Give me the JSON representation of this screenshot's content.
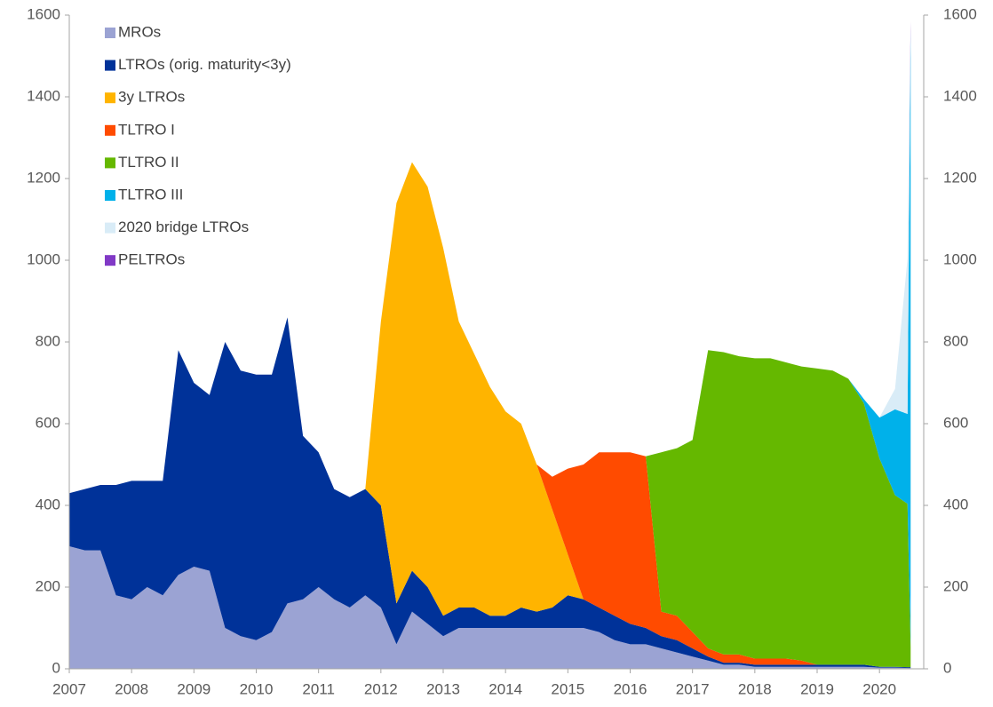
{
  "chart_data": {
    "type": "stacked-area",
    "x": [
      2007,
      2007.25,
      2007.5,
      2007.75,
      2008,
      2008.25,
      2008.5,
      2008.75,
      2009,
      2009.25,
      2009.5,
      2009.75,
      2010,
      2010.25,
      2010.5,
      2010.75,
      2011,
      2011.25,
      2011.5,
      2011.75,
      2012,
      2012.25,
      2012.5,
      2012.75,
      2013,
      2013.25,
      2013.5,
      2013.75,
      2014,
      2014.25,
      2014.5,
      2014.75,
      2015,
      2015.25,
      2015.5,
      2015.75,
      2016,
      2016.25,
      2016.5,
      2016.75,
      2017,
      2017.25,
      2017.5,
      2017.75,
      2018,
      2018.25,
      2018.5,
      2018.75,
      2019,
      2019.25,
      2019.5,
      2019.75,
      2020,
      2020.25,
      2020.45,
      2020.5
    ],
    "series": [
      {
        "name": "MROs",
        "color": "#9ba3d3",
        "values": [
          300,
          290,
          290,
          180,
          170,
          200,
          180,
          230,
          250,
          240,
          100,
          80,
          70,
          90,
          160,
          170,
          200,
          170,
          150,
          180,
          150,
          60,
          140,
          110,
          80,
          100,
          100,
          100,
          100,
          100,
          100,
          100,
          100,
          100,
          90,
          70,
          60,
          60,
          50,
          40,
          30,
          20,
          10,
          10,
          5,
          5,
          5,
          5,
          5,
          5,
          5,
          5,
          3,
          3,
          2,
          2
        ]
      },
      {
        "name": "LTROs (orig. maturity<3y)",
        "color": "#003299",
        "values": [
          130,
          150,
          160,
          270,
          290,
          260,
          280,
          550,
          450,
          430,
          700,
          650,
          650,
          630,
          700,
          400,
          330,
          270,
          270,
          260,
          250,
          100,
          100,
          90,
          50,
          50,
          50,
          30,
          30,
          50,
          40,
          50,
          80,
          70,
          60,
          60,
          50,
          40,
          30,
          30,
          20,
          10,
          5,
          5,
          5,
          5,
          5,
          5,
          5,
          5,
          5,
          5,
          2,
          2,
          2,
          2
        ]
      },
      {
        "name": "3y LTROs",
        "color": "#ffb400",
        "values": [
          0,
          0,
          0,
          0,
          0,
          0,
          0,
          0,
          0,
          0,
          0,
          0,
          0,
          0,
          0,
          0,
          0,
          0,
          0,
          0,
          450,
          980,
          1000,
          980,
          900,
          700,
          620,
          560,
          500,
          450,
          360,
          240,
          100,
          0,
          0,
          0,
          0,
          0,
          0,
          0,
          0,
          0,
          0,
          0,
          0,
          0,
          0,
          0,
          0,
          0,
          0,
          0,
          0,
          0,
          0,
          0
        ]
      },
      {
        "name": "TLTRO I",
        "color": "#ff4b00",
        "values": [
          0,
          0,
          0,
          0,
          0,
          0,
          0,
          0,
          0,
          0,
          0,
          0,
          0,
          0,
          0,
          0,
          0,
          0,
          0,
          0,
          0,
          0,
          0,
          0,
          0,
          0,
          0,
          0,
          0,
          0,
          0,
          80,
          210,
          330,
          380,
          400,
          420,
          420,
          60,
          60,
          40,
          20,
          20,
          20,
          15,
          15,
          15,
          10,
          0,
          0,
          0,
          0,
          0,
          0,
          0,
          0
        ]
      },
      {
        "name": "TLTRO II",
        "color": "#65b800",
        "values": [
          0,
          0,
          0,
          0,
          0,
          0,
          0,
          0,
          0,
          0,
          0,
          0,
          0,
          0,
          0,
          0,
          0,
          0,
          0,
          0,
          0,
          0,
          0,
          0,
          0,
          0,
          0,
          0,
          0,
          0,
          0,
          0,
          0,
          0,
          0,
          0,
          0,
          0,
          390,
          410,
          470,
          730,
          740,
          730,
          735,
          735,
          725,
          720,
          725,
          720,
          700,
          640,
          510,
          420,
          400,
          50
        ]
      },
      {
        "name": "TLTRO III",
        "color": "#00b1ea",
        "values": [
          0,
          0,
          0,
          0,
          0,
          0,
          0,
          0,
          0,
          0,
          0,
          0,
          0,
          0,
          0,
          0,
          0,
          0,
          0,
          0,
          0,
          0,
          0,
          0,
          0,
          0,
          0,
          0,
          0,
          0,
          0,
          0,
          0,
          0,
          0,
          0,
          0,
          0,
          0,
          0,
          0,
          0,
          0,
          0,
          0,
          0,
          0,
          0,
          0,
          0,
          0,
          10,
          100,
          210,
          220,
          1510
        ]
      },
      {
        "name": "2020 bridge LTROs",
        "color": "#d9ecf7",
        "values": [
          0,
          0,
          0,
          0,
          0,
          0,
          0,
          0,
          0,
          0,
          0,
          0,
          0,
          0,
          0,
          0,
          0,
          0,
          0,
          0,
          0,
          0,
          0,
          0,
          0,
          0,
          0,
          0,
          0,
          0,
          0,
          0,
          0,
          0,
          0,
          0,
          0,
          0,
          0,
          0,
          0,
          0,
          0,
          0,
          0,
          0,
          0,
          0,
          0,
          0,
          0,
          0,
          0,
          50,
          380,
          0
        ]
      },
      {
        "name": "PELTROs",
        "color": "#8139c6",
        "values": [
          0,
          0,
          0,
          0,
          0,
          0,
          0,
          0,
          0,
          0,
          0,
          0,
          0,
          0,
          0,
          0,
          0,
          0,
          0,
          0,
          0,
          0,
          0,
          0,
          0,
          0,
          0,
          0,
          0,
          0,
          0,
          0,
          0,
          0,
          0,
          0,
          0,
          0,
          0,
          0,
          0,
          0,
          0,
          0,
          0,
          0,
          0,
          0,
          0,
          0,
          0,
          0,
          0,
          0,
          0,
          20
        ]
      }
    ],
    "xlim": [
      2007,
      2020.71
    ],
    "xticks": [
      2007,
      2008,
      2009,
      2010,
      2011,
      2012,
      2013,
      2014,
      2015,
      2016,
      2017,
      2018,
      2019,
      2020
    ],
    "ylim": [
      0,
      1600
    ],
    "yticks": [
      0,
      200,
      400,
      600,
      800,
      1000,
      1200,
      1400,
      1600
    ],
    "y2lim": [
      0,
      1600
    ],
    "y2ticks": [
      0,
      200,
      400,
      600,
      800,
      1000,
      1200,
      1400,
      1600
    ],
    "legend": "upper-left"
  }
}
